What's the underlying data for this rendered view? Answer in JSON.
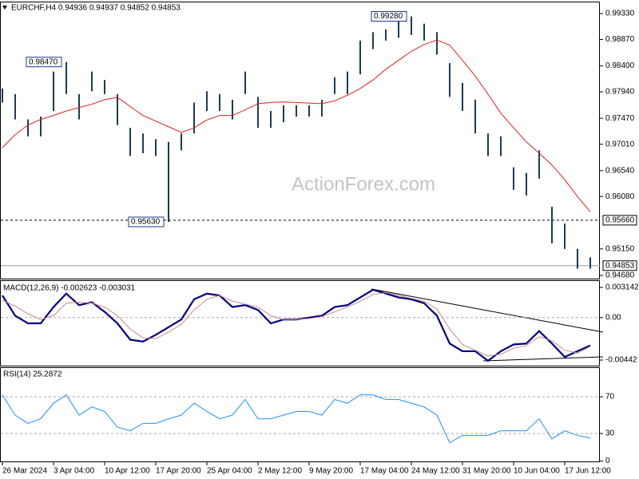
{
  "watermark": "ActionForex.com",
  "chart_data": [
    {
      "type": "ohlc",
      "title": "EURCHF,H4 0.94936 0.94937 0.94852 0.94853",
      "color": "#1c3b57",
      "categories": [
        "26 Mar 2024",
        null,
        null,
        null,
        "3 Apr 04:00",
        null,
        null,
        null,
        "10 Apr 12:00",
        null,
        null,
        null,
        "17 Apr 20:00",
        null,
        null,
        null,
        "25 Apr 04:00",
        null,
        null,
        null,
        "2 May 12:00",
        null,
        null,
        null,
        "9 May 20:00",
        null,
        null,
        null,
        "17 May 04:00",
        null,
        null,
        null,
        "24 May 12:00",
        null,
        null,
        null,
        "31 May 20:00",
        null,
        null,
        null,
        "10 Jun 04:00",
        null,
        null,
        null,
        "17 Jun 12:00",
        null,
        null
      ],
      "high": [
        0.98,
        0.979,
        0.9745,
        0.975,
        0.983,
        0.9847,
        0.979,
        0.983,
        0.9815,
        0.979,
        0.973,
        0.972,
        0.971,
        0.9705,
        0.972,
        0.9775,
        0.9795,
        0.979,
        0.978,
        0.983,
        0.9785,
        0.976,
        0.977,
        0.977,
        0.977,
        0.978,
        0.982,
        0.983,
        0.9885,
        0.99,
        0.9905,
        0.992,
        0.9928,
        0.9915,
        0.99,
        0.9845,
        0.981,
        0.978,
        0.972,
        0.9715,
        0.966,
        0.965,
        0.969,
        0.959,
        0.956,
        0.9515,
        0.95
      ],
      "low": [
        0.9775,
        0.9745,
        0.9715,
        0.9715,
        0.976,
        0.979,
        0.9745,
        0.9795,
        0.979,
        0.9735,
        0.968,
        0.9685,
        0.968,
        0.9563,
        0.969,
        0.972,
        0.976,
        0.976,
        0.9745,
        0.979,
        0.973,
        0.973,
        0.974,
        0.975,
        0.975,
        0.975,
        0.979,
        0.979,
        0.9825,
        0.987,
        0.9885,
        0.989,
        0.9895,
        0.9885,
        0.986,
        0.9785,
        0.976,
        0.972,
        0.968,
        0.968,
        0.962,
        0.961,
        0.964,
        0.9525,
        0.9515,
        0.948,
        0.948
      ],
      "ma": {
        "color": "#e02020",
        "values": [
          0.9695,
          0.9718,
          0.9735,
          0.9745,
          0.9752,
          0.976,
          0.9766,
          0.9772,
          0.978,
          0.9784,
          0.9768,
          0.9752,
          0.9742,
          0.9732,
          0.9722,
          0.973,
          0.9744,
          0.9752,
          0.9752,
          0.9762,
          0.9773,
          0.9775,
          0.9776,
          0.9775,
          0.9774,
          0.9773,
          0.9778,
          0.9788,
          0.98,
          0.9815,
          0.9834,
          0.985,
          0.9866,
          0.9878,
          0.9886,
          0.9877,
          0.985,
          0.9822,
          0.979,
          0.9756,
          0.973,
          0.9705,
          0.9685,
          0.9664,
          0.9638,
          0.9608,
          0.9581
        ]
      },
      "ylim": [
        0.94637,
        0.995
      ],
      "yticks": [
        {
          "value": 0.9933,
          "label": "0.99330"
        },
        {
          "value": 0.9887,
          "label": "0.98870"
        },
        {
          "value": 0.984,
          "label": "0.98400"
        },
        {
          "value": 0.9794,
          "label": "0.97940"
        },
        {
          "value": 0.9747,
          "label": "0.97470"
        },
        {
          "value": 0.9701,
          "label": "0.97010"
        },
        {
          "value": 0.9654,
          "label": "0.96540"
        },
        {
          "value": 0.9608,
          "label": "0.96080"
        },
        {
          "value": 0.9515,
          "label": "0.95150"
        },
        {
          "value": 0.9468,
          "label": "0.94680"
        }
      ],
      "annotations": [
        {
          "value": 0.9847,
          "label": "0.98470",
          "at": 5
        },
        {
          "value": 0.9928,
          "label": "0.99280",
          "at": 32
        },
        {
          "value": 0.9563,
          "label": "0.95630",
          "at": 13
        }
      ],
      "hlines": [
        {
          "value": 0.9566,
          "label": "0.95660",
          "style": "dashed"
        },
        {
          "value": 0.94853,
          "label": "0.94853",
          "style": "solid"
        }
      ]
    },
    {
      "type": "line",
      "title": "MACD(12,26,9) -0.002623 -0.003031",
      "series": [
        {
          "color": "#000080",
          "values": [
            0.0023,
            0.0002,
            -0.0006,
            -0.0006,
            0.0011,
            0.0025,
            0.0013,
            0.0016,
            0.0006,
            -0.0006,
            -0.0023,
            -0.0025,
            -0.0018,
            -0.001,
            -0.0002,
            0.0019,
            0.0025,
            0.0023,
            0.0011,
            0.0013,
            0.0008,
            -0.0006,
            -0.0002,
            -0.0002,
            0.0,
            0.0002,
            0.0011,
            0.0013,
            0.0021,
            0.0029,
            0.0025,
            0.0021,
            0.0019,
            0.0015,
            0.0002,
            -0.0027,
            -0.0035,
            -0.0035,
            -0.0045,
            -0.0035,
            -0.0028,
            -0.0027,
            -0.0014,
            -0.0027,
            -0.0041,
            -0.0035,
            -0.0029
          ]
        },
        {
          "color": "#c88a8a",
          "values": [
            0.0018,
            0.0012,
            0.0004,
            -0.0002,
            0.0002,
            0.0015,
            0.0016,
            0.0015,
            0.0011,
            0.0002,
            -0.0012,
            -0.0021,
            -0.0022,
            -0.0015,
            -0.0007,
            0.0008,
            0.0019,
            0.0023,
            0.0017,
            0.0014,
            0.0011,
            0.0002,
            -0.0002,
            -0.0002,
            -0.0001,
            0.0001,
            0.0006,
            0.0011,
            0.0017,
            0.0024,
            0.0026,
            0.0023,
            0.002,
            0.0017,
            0.0009,
            -0.0012,
            -0.0028,
            -0.0034,
            -0.004,
            -0.0038,
            -0.0032,
            -0.0029,
            -0.002,
            -0.0024,
            -0.0034,
            -0.0037,
            -0.003
          ]
        }
      ],
      "ylim": [
        -0.005002,
        0.003807
      ],
      "yticks": [
        0.003142,
        {
          "value": 0,
          "label": "0.00"
        },
        -0.00442
      ],
      "hlines": [
        0
      ]
    },
    {
      "type": "line",
      "title": "RSI(14) 25.2872",
      "series": [
        {
          "color": "#1e90ff",
          "values": [
            72,
            50,
            41,
            46,
            63,
            72,
            50,
            59,
            54,
            37,
            33,
            41,
            41,
            46,
            50,
            63,
            54,
            46,
            50,
            67,
            46,
            46,
            50,
            54,
            54,
            50,
            67,
            63,
            72,
            72,
            67,
            67,
            63,
            59,
            50,
            20,
            28,
            28,
            28,
            33,
            33,
            33,
            46,
            24,
            33,
            28,
            25
          ]
        }
      ],
      "ylim": [
        -0.4,
        100.4
      ],
      "yticks": [
        0,
        30,
        70
      ],
      "hlines": [
        30,
        70
      ]
    }
  ]
}
